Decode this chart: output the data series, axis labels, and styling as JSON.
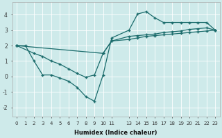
{
  "xlabel": "Humidex (Indice chaleur)",
  "bg_color": "#ceeaea",
  "line_color": "#1a6b6b",
  "grid_color": "#ffffff",
  "xlim": [
    -0.5,
    23.5
  ],
  "ylim": [
    -2.6,
    4.8
  ],
  "xticks": [
    0,
    1,
    2,
    3,
    4,
    5,
    6,
    7,
    8,
    9,
    10,
    11,
    13,
    14,
    15,
    16,
    17,
    18,
    19,
    20,
    21,
    22,
    23
  ],
  "yticks": [
    -2,
    -1,
    0,
    1,
    2,
    3,
    4
  ],
  "lines": [
    {
      "x": [
        0,
        1,
        2,
        3,
        4,
        5,
        6,
        7,
        8,
        9,
        10,
        11,
        13,
        14,
        15,
        16,
        17,
        18,
        19,
        20,
        21,
        22,
        23
      ],
      "y": [
        2.0,
        2.0,
        1.0,
        0.1,
        0.1,
        -0.1,
        -0.3,
        -0.7,
        -1.3,
        -1.6,
        0.1,
        2.5,
        3.0,
        4.05,
        4.2,
        3.8,
        3.5,
        3.5,
        3.5,
        3.5,
        3.5,
        3.5,
        3.0
      ]
    },
    {
      "x": [
        0,
        10,
        11,
        13,
        14,
        15,
        16,
        17,
        18,
        19,
        20,
        21,
        22,
        23
      ],
      "y": [
        2.0,
        1.5,
        2.3,
        2.6,
        2.65,
        2.7,
        2.75,
        2.85,
        2.9,
        2.95,
        3.05,
        3.1,
        3.15,
        3.0
      ]
    },
    {
      "x": [
        0,
        2,
        3,
        4,
        5,
        6,
        7,
        8,
        9,
        10,
        11,
        13,
        14,
        15,
        16,
        17,
        18,
        19,
        20,
        21,
        22,
        23
      ],
      "y": [
        2.0,
        1.5,
        1.3,
        1.0,
        0.8,
        0.5,
        0.2,
        -0.05,
        0.1,
        1.5,
        2.3,
        2.4,
        2.5,
        2.6,
        2.65,
        2.7,
        2.75,
        2.8,
        2.85,
        2.9,
        2.95,
        3.0
      ]
    }
  ]
}
